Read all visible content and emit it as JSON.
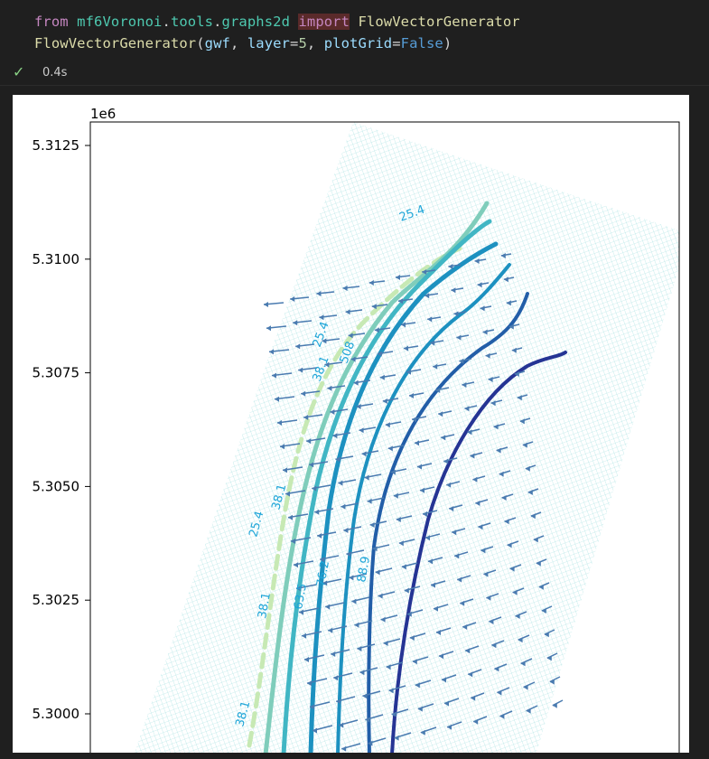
{
  "code": {
    "line1": {
      "kw_from": "from",
      "module": "mf6Voronoi",
      "dot1": ".",
      "sub1": "tools",
      "dot2": ".",
      "sub2": "graphs2d",
      "kw_import": "import",
      "cls": "FlowVectorGenerator"
    },
    "line2": {
      "fn": "FlowVectorGenerator",
      "p_open": "(",
      "arg1": "gwf",
      "comma1": ", ",
      "kw_layer": "layer",
      "eq1": "=",
      "val_layer": "5",
      "comma2": ", ",
      "kw_plot": "plotGrid",
      "eq2": "=",
      "val_plot": "False",
      "p_close": ")"
    }
  },
  "status": {
    "time": "0.4s"
  },
  "colors": {
    "background": "#1f1f1f",
    "success": "#89d185",
    "keyword": "#c586c0",
    "module": "#4ec9b0",
    "function": "#dcdcaa",
    "variable": "#9cdcfe",
    "number": "#b5cea8",
    "boolean": "#569cd6"
  },
  "chart_data": {
    "type": "contour",
    "y_offset_label": "1e6",
    "y_ticks": [
      "5.3000",
      "5.3025",
      "5.3050",
      "5.3075",
      "5.3100",
      "5.3125"
    ],
    "y_tick_values": [
      5.3,
      5.3025,
      5.305,
      5.3075,
      5.31,
      5.3125
    ],
    "grid_visible": true,
    "contour_labels": [
      "25.4",
      "25.4",
      "38.1",
      "508",
      "25.4",
      "38.1",
      "38.1",
      "63.5",
      "76.2",
      "88.9",
      "38.1"
    ],
    "contour_colors": [
      "#c7e9b4",
      "#7fcdbb",
      "#41b6c4",
      "#1d91c0",
      "#225ea8",
      "#253494"
    ],
    "arrow_color": "#4a7bb0"
  }
}
